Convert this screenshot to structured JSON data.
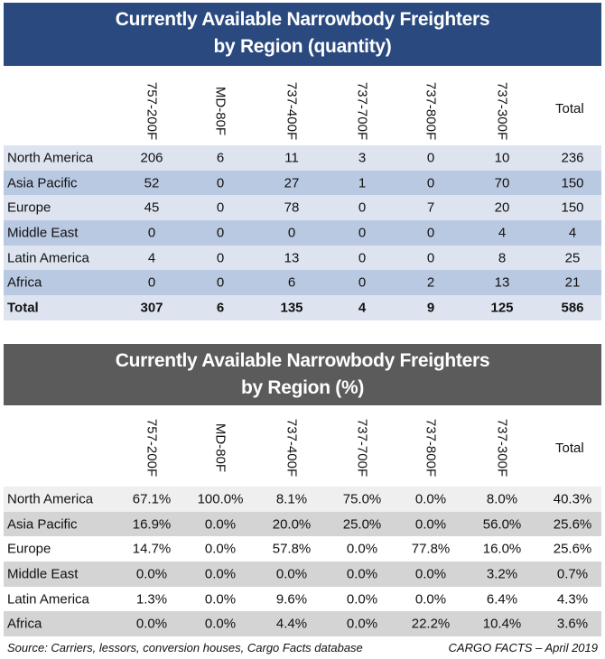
{
  "qty_table": {
    "title_line1": "Currently Available Narrowbody Freighters",
    "title_line2": "by Region (quantity)",
    "columns": [
      "757-200F",
      "MD-80F",
      "737-400F",
      "737-700F",
      "737-800F",
      "737-300F"
    ],
    "total_header": "Total",
    "rows": [
      {
        "region": "North America",
        "values": [
          "206",
          "6",
          "11",
          "3",
          "0",
          "10"
        ],
        "total": "236"
      },
      {
        "region": "Asia Pacific",
        "values": [
          "52",
          "0",
          "27",
          "1",
          "0",
          "70"
        ],
        "total": "150"
      },
      {
        "region": "Europe",
        "values": [
          "45",
          "0",
          "78",
          "0",
          "7",
          "20"
        ],
        "total": "150"
      },
      {
        "region": "Middle East",
        "values": [
          "0",
          "0",
          "0",
          "0",
          "0",
          "4"
        ],
        "total": "4"
      },
      {
        "region": "Latin America",
        "values": [
          "4",
          "0",
          "13",
          "0",
          "0",
          "8"
        ],
        "total": "25"
      },
      {
        "region": "Africa",
        "values": [
          "0",
          "0",
          "6",
          "0",
          "2",
          "13"
        ],
        "total": "21"
      }
    ],
    "totals_row": {
      "region": "Total",
      "values": [
        "307",
        "6",
        "135",
        "4",
        "9",
        "125"
      ],
      "total": "586"
    },
    "colors": {
      "banner": "#2a4a7f",
      "row_light": "#dde4f0",
      "row_dark": "#bac9e2"
    }
  },
  "pct_table": {
    "title_line1": "Currently Available Narrowbody Freighters",
    "title_line2": "by Region (%)",
    "columns": [
      "757-200F",
      "MD-80F",
      "737-400F",
      "737-700F",
      "737-800F",
      "737-300F"
    ],
    "total_header": "Total",
    "rows": [
      {
        "region": "North America",
        "values": [
          "67.1%",
          "100.0%",
          "8.1%",
          "75.0%",
          "0.0%",
          "8.0%"
        ],
        "total": "40.3%"
      },
      {
        "region": "Asia Pacific",
        "values": [
          "16.9%",
          "0.0%",
          "20.0%",
          "25.0%",
          "0.0%",
          "56.0%"
        ],
        "total": "25.6%"
      },
      {
        "region": "Europe",
        "values": [
          "14.7%",
          "0.0%",
          "57.8%",
          "0.0%",
          "77.8%",
          "16.0%"
        ],
        "total": "25.6%"
      },
      {
        "region": "Middle East",
        "values": [
          "0.0%",
          "0.0%",
          "0.0%",
          "0.0%",
          "0.0%",
          "3.2%"
        ],
        "total": "0.7%"
      },
      {
        "region": "Latin America",
        "values": [
          "1.3%",
          "0.0%",
          "9.6%",
          "0.0%",
          "0.0%",
          "6.4%"
        ],
        "total": "4.3%"
      },
      {
        "region": "Africa",
        "values": [
          "0.0%",
          "0.0%",
          "4.4%",
          "0.0%",
          "22.2%",
          "10.4%"
        ],
        "total": "3.6%"
      }
    ],
    "colors": {
      "banner": "#5b5b5b",
      "row_light": "#efefef",
      "row_dark": "#d4d4d4"
    }
  },
  "footer": {
    "source": "Source: Carriers, lessors, conversion houses, Cargo Facts database",
    "credit": "CARGO FACTS – April 2019"
  }
}
